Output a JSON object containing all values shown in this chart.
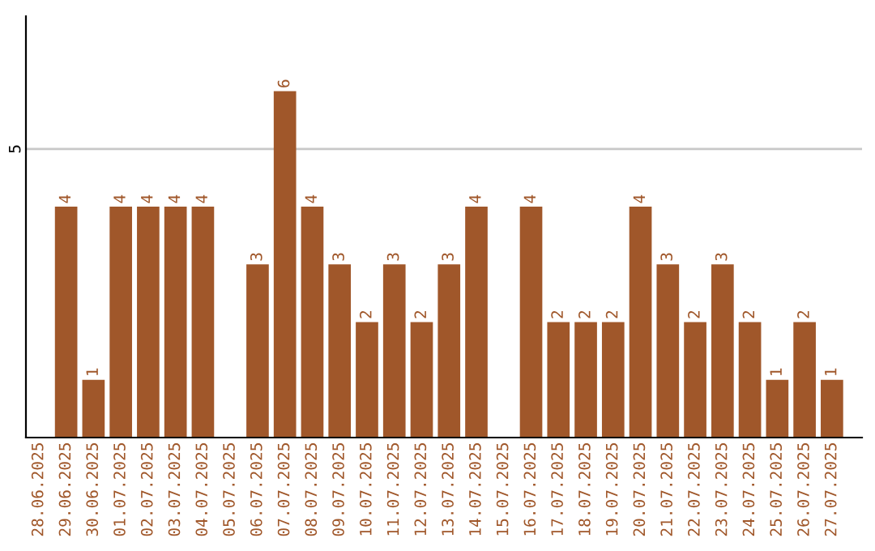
{
  "chart_data": {
    "type": "bar",
    "categories": [
      "28.06.2025",
      "29.06.2025",
      "30.06.2025",
      "01.07.2025",
      "02.07.2025",
      "03.07.2025",
      "04.07.2025",
      "05.07.2025",
      "06.07.2025",
      "07.07.2025",
      "08.07.2025",
      "09.07.2025",
      "10.07.2025",
      "11.07.2025",
      "12.07.2025",
      "13.07.2025",
      "14.07.2025",
      "15.07.2025",
      "16.07.2025",
      "17.07.2025",
      "18.07.2025",
      "19.07.2025",
      "20.07.2025",
      "21.07.2025",
      "22.07.2025",
      "23.07.2025",
      "24.07.2025",
      "25.07.2025",
      "26.07.2025",
      "27.07.2025"
    ],
    "values": [
      0,
      4,
      1,
      4,
      4,
      4,
      4,
      0,
      3,
      6,
      4,
      3,
      2,
      3,
      2,
      3,
      4,
      0,
      4,
      2,
      2,
      2,
      4,
      3,
      2,
      3,
      2,
      1,
      2,
      1
    ],
    "value_labels": [
      null,
      "4",
      "1",
      "4",
      "4",
      "4",
      "4",
      null,
      "3",
      "6",
      "4",
      "3",
      "2",
      "3",
      "2",
      "3",
      "4",
      null,
      "4",
      "2",
      "2",
      "2",
      "4",
      "3",
      "2",
      "3",
      "2",
      "1",
      "2",
      "1"
    ],
    "color": "#a0572a",
    "ylim": [
      0,
      7.3
    ],
    "yticks": [
      5
    ],
    "grid": "y",
    "legend": false
  }
}
